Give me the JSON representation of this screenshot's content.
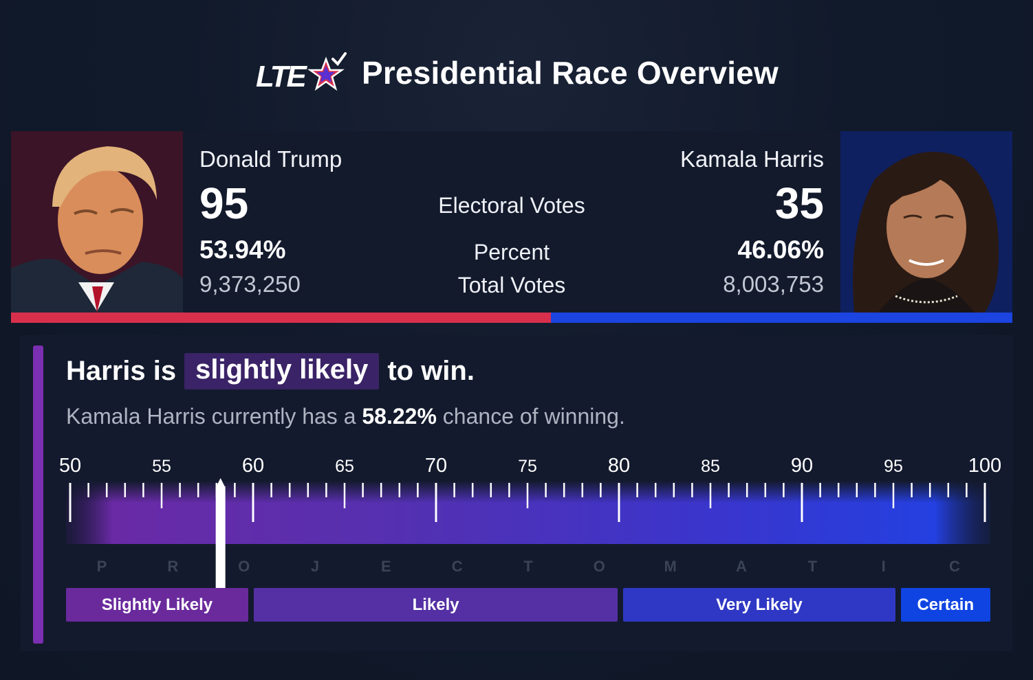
{
  "header": {
    "logo_text": "LTE",
    "title": "Presidential Race Overview"
  },
  "labels": {
    "electoral": "Electoral Votes",
    "percent": "Percent",
    "total": "Total Votes"
  },
  "candidates": {
    "left": {
      "name": "Donald Trump",
      "ev": "95",
      "pct": "53.94%",
      "votes": "9,373,250",
      "share": 53.94,
      "color": "#d8304c"
    },
    "right": {
      "name": "Kamala Harris",
      "ev": "35",
      "pct": "46.06%",
      "votes": "8,003,753",
      "share": 46.06,
      "color": "#1b44e0"
    }
  },
  "projection": {
    "headline_pre": "Harris is",
    "headline_highlight": "slightly likely",
    "headline_post": "to win.",
    "sub_pre": "Kamala Harris currently has a",
    "sub_value": "58.22%",
    "sub_post": "chance of winning.",
    "probability": 58.22,
    "scale_min": 50,
    "scale_max": 100,
    "major_ticks": [
      "50",
      "55",
      "60",
      "65",
      "70",
      "75",
      "80",
      "85",
      "90",
      "95",
      "100"
    ],
    "watermark": [
      "P",
      "R",
      "O",
      "J",
      "E",
      "C",
      "T",
      "O",
      "M",
      "A",
      "T",
      "I",
      "C"
    ],
    "categories": [
      {
        "label": "Slightly Likely",
        "from": 50,
        "to": 60,
        "color": "#6a2a9c"
      },
      {
        "label": "Likely",
        "from": 60,
        "to": 80,
        "color": "#5430a4"
      },
      {
        "label": "Very Likely",
        "from": 80,
        "to": 95,
        "color": "#2f38c4"
      },
      {
        "label": "Certain",
        "from": 95,
        "to": 100,
        "color": "#0f44e2"
      }
    ]
  }
}
